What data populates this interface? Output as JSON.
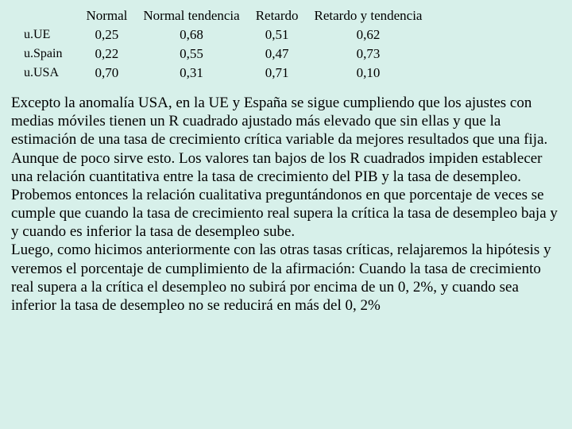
{
  "table": {
    "headers": [
      "",
      "Normal",
      "Normal tendencia",
      "Retardo",
      "Retardo y tendencia"
    ],
    "rows": [
      {
        "label": "u.UE",
        "values": [
          "0,25",
          "0,68",
          "0,51",
          "0,62"
        ]
      },
      {
        "label": "u.Spain",
        "values": [
          "0,22",
          "0,55",
          "0,47",
          "0,73"
        ]
      },
      {
        "label": "u.USA",
        "values": [
          "0,70",
          "0,31",
          "0,71",
          "0,10"
        ]
      }
    ],
    "background_color": "#d7f0ea",
    "text_color": "#000000",
    "header_fontsize": 17,
    "cell_fontsize": 17
  },
  "paragraphs": [
    "Excepto la anomalía USA, en la UE y España se sigue cumpliendo que los ajustes con medias móviles tienen un R cuadrado ajustado más elevado que sin ellas y que la estimación de una tasa de crecimiento crítica variable da mejores resultados que una fija.",
    "Aunque de poco sirve esto. Los valores tan bajos de los R cuadrados impiden establecer una relación cuantitativa entre la tasa de crecimiento del PIB y la tasa de desempleo.",
    "Probemos entonces la relación cualitativa preguntándonos en que porcentaje de veces se cumple que cuando la tasa de crecimiento real supera la crítica la tasa de desempleo baja y y cuando es inferior la tasa de desempleo sube.",
    "Luego, como hicimos anteriormente con las otras tasas críticas, relajaremos la hipótesis y veremos el porcentaje de cumplimiento de la afirmación: Cuando la tasa de crecimiento real supera a la crítica el desempleo no subirá por encima de un 0, 2%, y cuando sea inferior la tasa de desempleo no se reducirá en más del 0, 2%"
  ]
}
